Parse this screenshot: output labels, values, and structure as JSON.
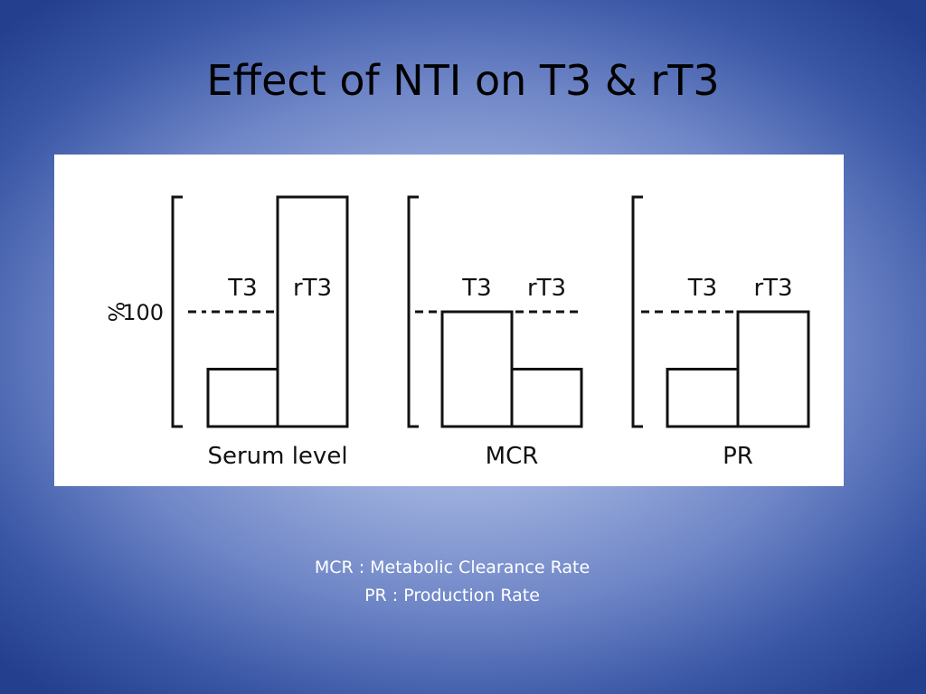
{
  "slide": {
    "title": "Effect of NTI on T3 & rT3",
    "captions": [
      "MCR : Metabolic Clearance Rate",
      "PR : Production Rate"
    ]
  },
  "chart_data": [
    {
      "type": "bar",
      "xlabel": "Serum level",
      "ylabel": "%",
      "reference_value": 100,
      "reference_label": "100",
      "categories": [
        "T3",
        "rT3"
      ],
      "values": [
        50,
        200
      ],
      "ylim": [
        0,
        200
      ]
    },
    {
      "type": "bar",
      "xlabel": "MCR",
      "reference_value": 100,
      "categories": [
        "T3",
        "rT3"
      ],
      "values": [
        100,
        50
      ],
      "ylim": [
        0,
        200
      ]
    },
    {
      "type": "bar",
      "xlabel": "PR",
      "reference_value": 100,
      "categories": [
        "T3",
        "rT3"
      ],
      "values": [
        50,
        100
      ],
      "ylim": [
        0,
        200
      ]
    }
  ]
}
